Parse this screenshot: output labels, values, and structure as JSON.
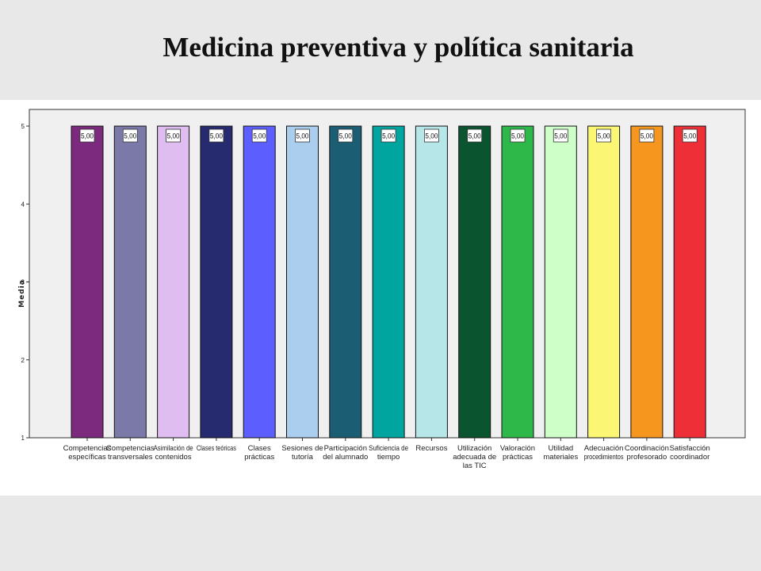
{
  "slide": {
    "title": "Medicina preventiva y política sanitaria"
  },
  "chart_data": {
    "type": "bar",
    "title": "",
    "xlabel": "",
    "ylabel": "Media",
    "ylim": [
      1,
      5
    ],
    "yticks": [
      1,
      2,
      3,
      4,
      5
    ],
    "grid": false,
    "categories": [
      "Competencias específicas",
      "Competencias transversales",
      "Asimilación de contenidos",
      "Clases teóricas",
      "Clases prácticas",
      "Sesiones de tutoría",
      "Participación del alumnado",
      "Suficiencia de tiempo",
      "Recursos",
      "Utilización adecuada de las TIC",
      "Valoración prácticas",
      "Utilidad materiales",
      "Adecuación procedimientos",
      "Coordinación profesorado",
      "Satisfacción coordinador"
    ],
    "category_label_lines": [
      [
        "Competencias",
        "específicas"
      ],
      [
        "Competencias",
        "transversales"
      ],
      [
        "Asimilación de",
        "contenidos"
      ],
      [
        "Clases teóricas"
      ],
      [
        "Clases",
        "prácticas"
      ],
      [
        "Sesiones de",
        "tutoría"
      ],
      [
        "Participación",
        "del alumnado"
      ],
      [
        "Suficiencia de",
        "tiempo"
      ],
      [
        "Recursos"
      ],
      [
        "Utilización",
        "adecuada de",
        "las TIC"
      ],
      [
        "Valoración",
        "prácticas"
      ],
      [
        "Utilidad",
        "materiales"
      ],
      [
        "Adecuación",
        "procedimientos"
      ],
      [
        "Coordinación",
        "profesorado"
      ],
      [
        "Satisfacción",
        "coordinador"
      ]
    ],
    "values": [
      5,
      5,
      5,
      5,
      5,
      5,
      5,
      5,
      5,
      5,
      5,
      5,
      5,
      5,
      5
    ],
    "value_labels": [
      "5,00",
      "5,00",
      "5,00",
      "5,00",
      "5,00",
      "5,00",
      "5,00",
      "5,00",
      "5,00",
      "5,00",
      "5,00",
      "5,00",
      "5,00",
      "5,00",
      "5,00"
    ],
    "colors": [
      "#7b2a7e",
      "#7b79a8",
      "#dfbdf0",
      "#262a6e",
      "#5d5efe",
      "#abcdee",
      "#1b5e74",
      "#00a59f",
      "#b6e6e8",
      "#0b5430",
      "#2fb84a",
      "#ceffc9",
      "#fbf674",
      "#f6961e",
      "#ef2f37"
    ],
    "plot_background": "#f0f0f0"
  }
}
